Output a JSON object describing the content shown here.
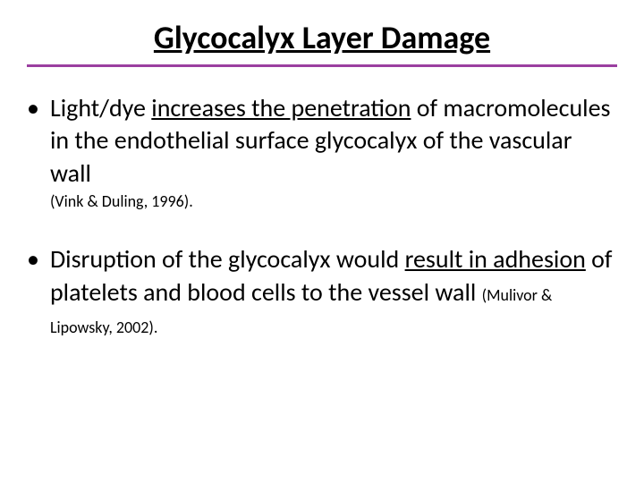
{
  "slide": {
    "title": "Glycocalyx Layer Damage",
    "title_fontsize": 36,
    "title_color": "#000000",
    "underline_color": "#9b3fa0",
    "underline_height": 3,
    "background_color": "#ffffff",
    "text_color": "#000000",
    "body_fontsize": 28,
    "citation_fontsize": 18,
    "bullets": [
      {
        "pre_text": "Light/dye ",
        "emphasis_text": "increases the penetration",
        "post_text": " of macromolecules in the endothelial surface glycocalyx of the vascular wall",
        "citation": "(Vink & Duling, 1996).",
        "citation_inline": false
      },
      {
        "pre_text": "Disruption of the glycocalyx would ",
        "emphasis_text": "result in adhesion",
        "post_text": " of platelets and blood cells to the vessel wall ",
        "citation": "(Mulivor & Lipowsky, 2002).",
        "citation_inline": true
      }
    ]
  }
}
